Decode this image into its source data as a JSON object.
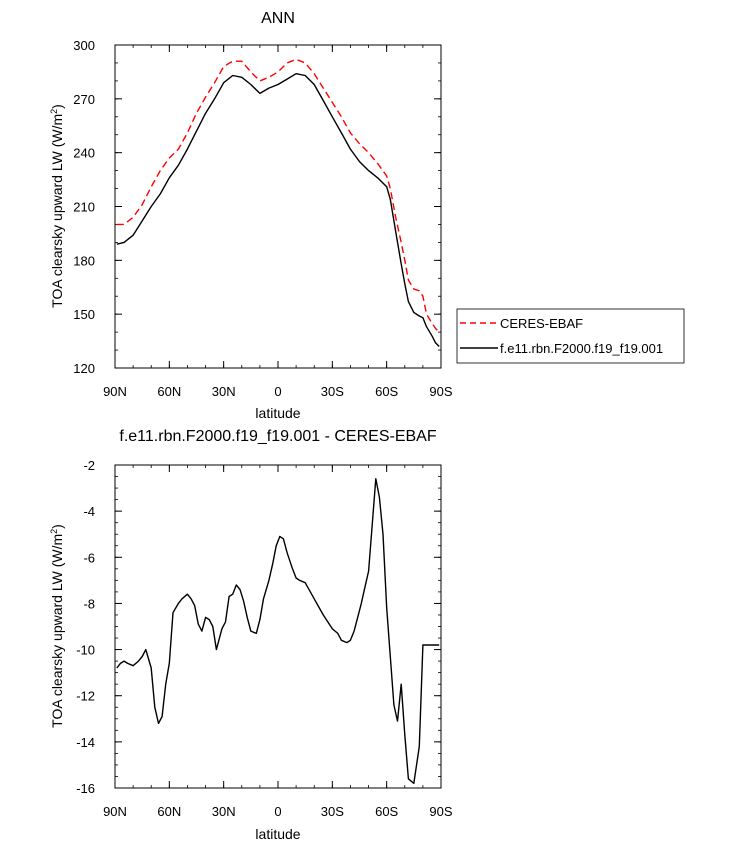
{
  "chart_data": [
    {
      "type": "line",
      "title": "ANN",
      "xlabel": "latitude",
      "ylabel": "TOA clearsky upward LW (W/m²)",
      "ylabel_parts": {
        "main": "TOA clearsky upward LW (W/m",
        "sup": "2",
        "close": ")"
      },
      "x_tick_labels": [
        "90N",
        "60N",
        "30N",
        "0",
        "30S",
        "60S",
        "90S"
      ],
      "x_tick_values": [
        90,
        60,
        30,
        0,
        -30,
        -60,
        -90
      ],
      "y_tick_labels": [
        "120",
        "150",
        "180",
        "210",
        "240",
        "270",
        "300"
      ],
      "y_tick_values": [
        120,
        150,
        180,
        210,
        240,
        270,
        300
      ],
      "xlim": [
        90,
        -90
      ],
      "ylim": [
        120,
        300
      ],
      "grid": false,
      "legend_position": "right",
      "series": [
        {
          "name": "CERES-EBAF",
          "color": "#ff0000",
          "style": "dashed",
          "x": [
            89,
            85,
            80,
            75,
            70,
            65,
            60,
            55,
            50,
            45,
            40,
            35,
            30,
            25,
            20,
            15,
            10,
            5,
            0,
            -5,
            -10,
            -15,
            -20,
            -25,
            -30,
            -35,
            -40,
            -45,
            -50,
            -55,
            -60,
            -62,
            -65,
            -68,
            -70,
            -72,
            -75,
            -78,
            -80,
            -82,
            -85,
            -87,
            -89
          ],
          "y": [
            200,
            200,
            204,
            211,
            221,
            230,
            237,
            242,
            251,
            262,
            271,
            279,
            288,
            291,
            291,
            285,
            280,
            282,
            285,
            290,
            292,
            290,
            284,
            276,
            268,
            260,
            251,
            245,
            240,
            234,
            227,
            220,
            204,
            190,
            180,
            169,
            164,
            163,
            160,
            150,
            145,
            142,
            140
          ]
        },
        {
          "name": "f.e11.rbn.F2000.f19_f19.001",
          "color": "#000000",
          "style": "solid",
          "x": [
            89,
            85,
            80,
            75,
            70,
            65,
            60,
            55,
            50,
            45,
            40,
            35,
            30,
            25,
            20,
            15,
            10,
            5,
            0,
            -5,
            -10,
            -15,
            -20,
            -25,
            -30,
            -35,
            -40,
            -45,
            -50,
            -55,
            -60,
            -62,
            -65,
            -68,
            -70,
            -72,
            -75,
            -78,
            -80,
            -82,
            -85,
            -87,
            -89
          ],
          "y": [
            189,
            190,
            194,
            202,
            210,
            217,
            226,
            233,
            242,
            252,
            262,
            270,
            279,
            283,
            282,
            278,
            273,
            276,
            278,
            281,
            284,
            283,
            278,
            269,
            260,
            251,
            242,
            235,
            230,
            226,
            221,
            214,
            196,
            178,
            167,
            157,
            151,
            149,
            148,
            143,
            138,
            134,
            132
          ]
        }
      ]
    },
    {
      "type": "line",
      "title": "f.e11.rbn.F2000.f19_f19.001 - CERES-EBAF",
      "xlabel": "latitude",
      "ylabel": "TOA clearsky upward LW (W/m²)",
      "ylabel_parts": {
        "main": "TOA clearsky upward LW (W/m",
        "sup": "2",
        "close": ")"
      },
      "x_tick_labels": [
        "90N",
        "60N",
        "30N",
        "0",
        "30S",
        "60S",
        "90S"
      ],
      "x_tick_values": [
        90,
        60,
        30,
        0,
        -30,
        -60,
        -90
      ],
      "y_tick_labels": [
        "-2",
        "-4",
        "-6",
        "-8",
        "-10",
        "-12",
        "-14",
        "-16"
      ],
      "y_tick_values": [
        -2,
        -4,
        -6,
        -8,
        -10,
        -12,
        -14,
        -16
      ],
      "xlim": [
        90,
        -90
      ],
      "ylim": [
        -16,
        -2
      ],
      "grid": false,
      "series": [
        {
          "color": "#000000",
          "style": "solid",
          "x": [
            89,
            87,
            85,
            83,
            80,
            77,
            75,
            73,
            70,
            68,
            66,
            64,
            62,
            60,
            58,
            55,
            53,
            50,
            48,
            46,
            44,
            42,
            40,
            38,
            36,
            34,
            31,
            29,
            27,
            25,
            23,
            21,
            19,
            17,
            15,
            12,
            10,
            8,
            5,
            3,
            1,
            -1,
            -3,
            -5,
            -8,
            -10,
            -12,
            -15,
            -20,
            -25,
            -30,
            -33,
            -35,
            -38,
            -40,
            -42,
            -44,
            -46,
            -48,
            -50,
            -52,
            -54,
            -56,
            -58,
            -60,
            -62,
            -64,
            -66,
            -68,
            -70,
            -72,
            -75,
            -78,
            -80,
            -82,
            -84,
            -86,
            -88,
            -89
          ],
          "y": [
            -10.8,
            -10.6,
            -10.5,
            -10.6,
            -10.7,
            -10.5,
            -10.3,
            -10.0,
            -10.8,
            -12.5,
            -13.2,
            -12.9,
            -11.5,
            -10.6,
            -8.4,
            -8.0,
            -7.8,
            -7.6,
            -7.8,
            -8.1,
            -8.9,
            -9.2,
            -8.6,
            -8.7,
            -9.0,
            -10.0,
            -9.1,
            -8.8,
            -7.7,
            -7.6,
            -7.2,
            -7.4,
            -7.9,
            -8.6,
            -9.2,
            -9.3,
            -8.7,
            -7.8,
            -7.0,
            -6.3,
            -5.5,
            -5.1,
            -5.2,
            -5.8,
            -6.5,
            -6.9,
            -7.0,
            -7.1,
            -7.8,
            -8.5,
            -9.1,
            -9.3,
            -9.6,
            -9.7,
            -9.6,
            -9.2,
            -8.6,
            -8.0,
            -7.3,
            -6.6,
            -4.6,
            -2.6,
            -3.4,
            -5.0,
            -8.2,
            -10.3,
            -12.4,
            -13.1,
            -11.5,
            -13.7,
            -15.6,
            -15.8,
            -14.2,
            -9.8,
            -9.8,
            -9.8,
            -9.8,
            -9.8,
            -9.8
          ]
        }
      ]
    }
  ]
}
